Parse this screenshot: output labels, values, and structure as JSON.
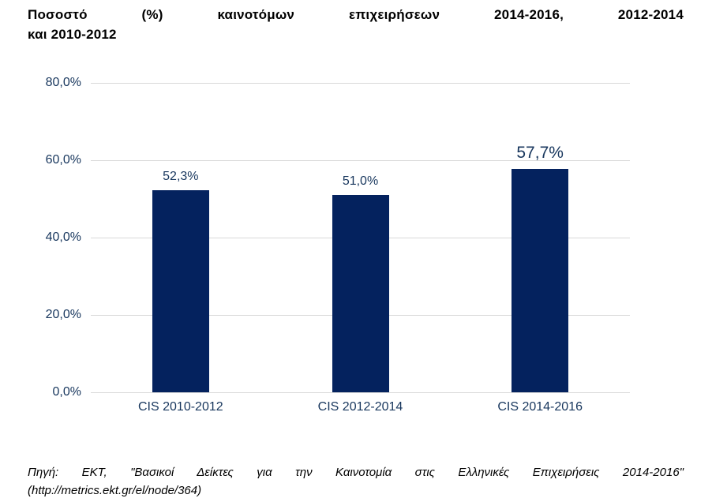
{
  "title": {
    "line1": "Ποσοστό (%) καινοτόμων επιχειρήσεων 2014-2016, 2012-2014",
    "line2": "και 2010-2012",
    "full": "Ποσοστό (%) καινοτόμων επιχειρήσεων 2014-2016, 2012-2014 και 2010-2012"
  },
  "source": {
    "line1": "Πηγή: ΕΚΤ, \"Βασικοί Δείκτες για την Καινοτομία στις Ελληνικές Επιχειρήσεις 2014-2016\"",
    "line2": "(http://metrics.ekt.gr/el/node/364)"
  },
  "colors": {
    "bar": "#04225e",
    "axis_text": "#17365d",
    "gridline": "#d9d9d9",
    "title_text": "#000000",
    "background": "#ffffff"
  },
  "chart_data": {
    "type": "bar",
    "title": "Ποσοστό (%) καινοτόμων επιχειρήσεων 2014-2016, 2012-2014 και 2010-2012",
    "categories": [
      "CIS 2010-2012",
      "CIS 2012-2014",
      "CIS 2014-2016"
    ],
    "values": [
      52.3,
      51.0,
      57.7
    ],
    "value_labels": [
      "52,3%",
      "51,0%",
      "57,7%"
    ],
    "emphasized": [
      false,
      false,
      true
    ],
    "xlabel": "",
    "ylabel": "",
    "ylim": [
      0,
      80
    ],
    "yticks": [
      0,
      20,
      40,
      60,
      80
    ],
    "ytick_labels": [
      "0,0%",
      "20,0%",
      "40,0%",
      "60,0%",
      "80,0%"
    ],
    "grid": true,
    "legend_position": "none",
    "bar_color": "#04225e"
  }
}
